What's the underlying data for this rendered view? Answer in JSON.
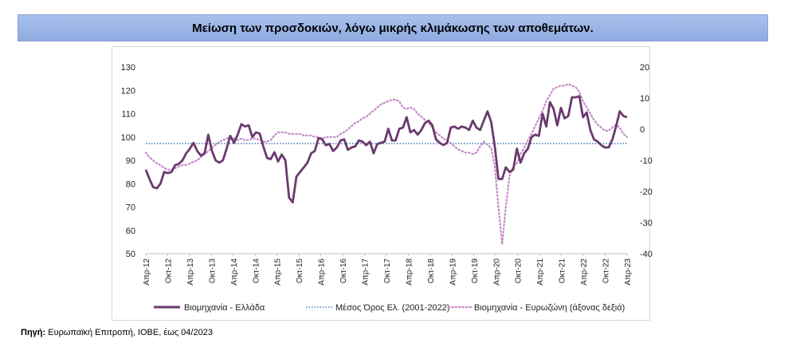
{
  "header": {
    "title": "Μείωση των προσδοκιών, λόγω μικρής κλιμάκωσης των αποθεμάτων."
  },
  "source": {
    "label": "Πηγή:",
    "text": " Ευρωπαϊκή Επιτροπή, ΙΟΒΕ, έως 04/2023"
  },
  "colors": {
    "greece": "#6b3a6e",
    "eurozone": "#c48ac9",
    "average": "#2e6fb0"
  },
  "chart_data": {
    "type": "line",
    "title": "",
    "x_tick_labels": [
      "Απρ-12",
      "Οκτ-12",
      "Απρ-13",
      "Οκτ-13",
      "Απρ-14",
      "Οκτ-14",
      "Απρ-15",
      "Οκτ-15",
      "Απρ-16",
      "Οκτ-16",
      "Απρ-17",
      "Οκτ-17",
      "Απρ-18",
      "Οκτ-18",
      "Απρ-19",
      "Οκτ-19",
      "Απρ-20",
      "Οκτ-20",
      "Απρ-21",
      "Οκτ-21",
      "Απρ-22",
      "Οκτ-22",
      "Απρ-23"
    ],
    "y_left": {
      "min": 50,
      "max": 130,
      "ticks": [
        50,
        60,
        70,
        80,
        90,
        100,
        110,
        120,
        130
      ]
    },
    "y_right": {
      "min": -40,
      "max": 20,
      "ticks": [
        -40,
        -30,
        -20,
        -10,
        0,
        10,
        20
      ]
    },
    "grid": false,
    "legend_position": "bottom",
    "series": [
      {
        "name": "Βιομηχανία  - Ελλάδα",
        "axis": "left",
        "style": "solid",
        "values": [
          86,
          82,
          78.5,
          78,
          80,
          85,
          84.5,
          85,
          88,
          88.5,
          90,
          93,
          95,
          97.5,
          94,
          92,
          93,
          101,
          94,
          90,
          89,
          90,
          95,
          100.5,
          97.5,
          101,
          105.5,
          104.5,
          105,
          100,
          102,
          101.5,
          96,
          91,
          90.5,
          93.5,
          89.5,
          92.5,
          90,
          74,
          72,
          83,
          85,
          87,
          89,
          93,
          94,
          99.5,
          99,
          96.5,
          97,
          94,
          95.5,
          98.5,
          99,
          94.5,
          95.5,
          96,
          98.5,
          98,
          96.5,
          98,
          93,
          97,
          97.5,
          98,
          103.5,
          98.5,
          98.5,
          103.5,
          104,
          108.5,
          102,
          103,
          101,
          103,
          106,
          107,
          105,
          99,
          97.5,
          96.5,
          97.5,
          104,
          104.5,
          103.5,
          104.5,
          104,
          103,
          107,
          104,
          103,
          107,
          111,
          106.5,
          96,
          82,
          82,
          87,
          85,
          86,
          95,
          89,
          93,
          95,
          100,
          101,
          100.5,
          110,
          104.5,
          115,
          112,
          105,
          112.5,
          108,
          109,
          117,
          117,
          117.5,
          108.5,
          110.5,
          103,
          99,
          98,
          96.5,
          95.5,
          95.5,
          99,
          104.5,
          111,
          109,
          108.5
        ]
      },
      {
        "name": "Μέσος Όρος Ελ. (2001-2022)",
        "axis": "left",
        "style": "dotted",
        "values": [
          97.2
        ]
      },
      {
        "name": "Βιομηχανία - Ευρωζώνη (άξονας δεξιά)",
        "axis": "right",
        "style": "dotted",
        "values": [
          -7.5,
          -9,
          -10,
          -11,
          -11.5,
          -12.5,
          -13,
          -13,
          -12.5,
          -12,
          -11.5,
          -11.5,
          -11,
          -10.5,
          -10,
          -9,
          -8,
          -7,
          -6,
          -5,
          -4,
          -3.5,
          -3,
          -2.5,
          -3,
          -3.5,
          -3,
          -3.5,
          -3.5,
          -3,
          -3,
          -3.5,
          -4,
          -4,
          -3.5,
          -2,
          -1,
          -1,
          -1,
          -1.5,
          -1.5,
          -1.5,
          -1.5,
          -2,
          -2,
          -2,
          -2.5,
          -2.5,
          -3,
          -2.5,
          -2.5,
          -2.5,
          -2.5,
          -1.5,
          -1,
          0,
          1,
          2,
          2.5,
          3.5,
          4,
          5,
          6,
          7,
          8,
          8.5,
          9,
          9.5,
          9.5,
          9,
          7,
          6.5,
          7,
          6.5,
          5,
          4,
          3,
          2,
          0.5,
          -1,
          -2,
          -3,
          -3.5,
          -4.5,
          -5.5,
          -6.5,
          -7,
          -7.5,
          -7.5,
          -8,
          -7.5,
          -5.5,
          -4,
          -5,
          -6,
          -12,
          -25,
          -37,
          -25,
          -15,
          -12,
          -11,
          -8,
          -6,
          -3.5,
          -1.5,
          1,
          3.5,
          6,
          9,
          11,
          13,
          13.5,
          14,
          14,
          14.5,
          14,
          13.5,
          12,
          9,
          7,
          5,
          3,
          1.5,
          0.5,
          -0.5,
          -0.5,
          0.5,
          1.5,
          0.5,
          -1.5,
          -2.5
        ]
      }
    ]
  }
}
